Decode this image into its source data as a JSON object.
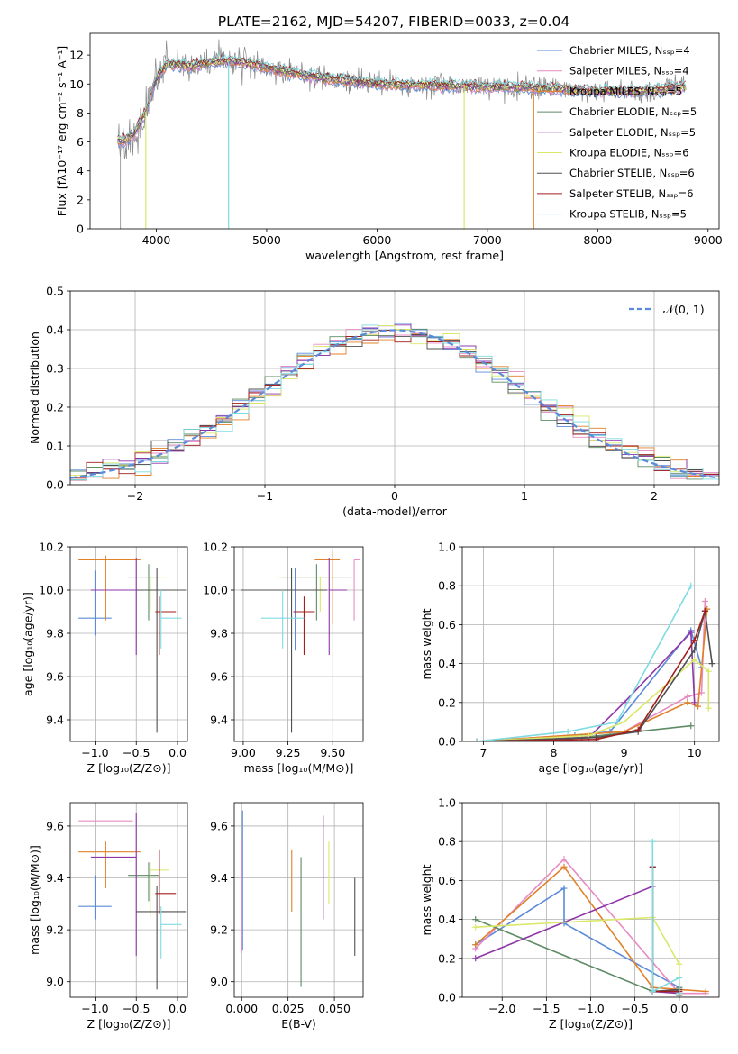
{
  "colors": [
    "#5b8bd9",
    "#e88bc4",
    "#e0812a",
    "#5e8a64",
    "#8e35a8",
    "#d9e86a",
    "#505050",
    "#a01f1f",
    "#7edbe0"
  ],
  "chart_data": [
    {
      "id": "spectrum",
      "type": "line",
      "title": "PLATE=2162, MJD=54207, FIBERID=0033, z=0.04",
      "xlabel": "wavelength [Angstrom, rest frame]",
      "ylabel": "Flux [fλ10⁻¹⁷ erg cm⁻² s⁻¹ A⁻¹]",
      "xlim": [
        3400,
        9100
      ],
      "ylim": [
        0,
        13.5
      ],
      "xticks": [
        4000,
        5000,
        6000,
        7000,
        8000,
        9000
      ],
      "yticks": [
        0,
        2,
        4,
        6,
        8,
        10,
        12
      ],
      "grid": false,
      "legend_position": "top-right",
      "legend": [
        "Chabrier MILES, Nₛₛₚ=4",
        "Salpeter MILES, Nₛₛₚ=4",
        "Kroupa MILES, Nₛₛₚ=5",
        "Chabrier ELODIE, Nₛₛₚ=5",
        "Salpeter ELODIE, Nₛₛₚ=5",
        "Kroupa ELODIE, Nₛₛₚ=6",
        "Chabrier STELIB, Nₛₛₚ=6",
        "Salpeter STELIB, Nₛₛₚ=6",
        "Kroupa STELIB, Nₛₛₚ=5"
      ],
      "continuum": {
        "x": [
          3650,
          3700,
          3800,
          3900,
          4000,
          4100,
          4300,
          4500,
          4700,
          4900,
          5200,
          5500,
          6000,
          6500,
          7000,
          7500,
          8000,
          8400,
          8800
        ],
        "y": [
          6.2,
          6.0,
          6.6,
          8.0,
          10.4,
          11.4,
          11.2,
          11.5,
          11.6,
          11.3,
          10.8,
          10.4,
          10.0,
          9.9,
          9.8,
          9.7,
          9.5,
          9.5,
          9.8
        ]
      },
      "dropouts": [
        {
          "series": "Kroupa ELODIE",
          "x": 3905
        },
        {
          "series": "Kroupa STELIB",
          "x": 4655
        },
        {
          "series": "Kroupa ELODIE",
          "x": 6790
        },
        {
          "series": "Kroupa MILES",
          "x": 7420
        }
      ]
    },
    {
      "id": "residuals",
      "type": "histogram",
      "xlabel": "(data-model)/error",
      "ylabel": "Normed distribution",
      "xlim": [
        -2.5,
        2.5
      ],
      "ylim": [
        0,
        0.5
      ],
      "xticks": [
        -2,
        -1,
        0,
        1,
        2
      ],
      "yticks": [
        0.0,
        0.1,
        0.2,
        0.3,
        0.4,
        0.5
      ],
      "grid": true,
      "legend_position": "top-right",
      "legend": [
        "𝒩(0, 1)"
      ],
      "reference_curve": {
        "name": "𝒩(0, 1)",
        "mean": 0,
        "sigma": 1,
        "style": "dashed"
      }
    },
    {
      "id": "age-vs-Z",
      "type": "errorbar",
      "xlabel": "Z [log₁₀(Z/Z⊙)]",
      "ylabel": "age  [log₁₀(age/yr)]",
      "xlim": [
        -1.3,
        0.12
      ],
      "ylim": [
        9.3,
        10.2
      ],
      "xticks": [
        -1.0,
        -0.5,
        0.0
      ],
      "yticks": [
        9.4,
        9.6,
        9.8,
        10.0,
        10.2
      ],
      "grid": true,
      "points": [
        {
          "x": -1.0,
          "xerr": [
            0.2,
            0.2
          ],
          "y": 9.87,
          "yerr": [
            0.08,
            0.22
          ]
        },
        {
          "x": -0.87,
          "xerr": [
            0.33,
            0.33
          ],
          "y": 10.14,
          "yerr": [
            0.0,
            0.0
          ]
        },
        {
          "x": -0.87,
          "xerr": [
            0.33,
            0.42
          ],
          "y": 10.14,
          "yerr": [
            0.28,
            0.02
          ]
        },
        {
          "x": -0.35,
          "xerr": [
            0.25,
            0.12
          ],
          "y": 10.06,
          "yerr": [
            0.2,
            0.06
          ]
        },
        {
          "x": -0.5,
          "xerr": [
            0.55,
            0.0
          ],
          "y": 10.0,
          "yerr": [
            0.3,
            0.15
          ]
        },
        {
          "x": -0.33,
          "xerr": [
            0.0,
            0.22
          ],
          "y": 10.06,
          "yerr": [
            0.16,
            0.0
          ]
        },
        {
          "x": -0.25,
          "xerr": [
            0.25,
            0.35
          ],
          "y": 10.0,
          "yerr": [
            0.66,
            0.1
          ]
        },
        {
          "x": -0.22,
          "xerr": [
            0.05,
            0.2
          ],
          "y": 9.9,
          "yerr": [
            0.2,
            0.07
          ]
        },
        {
          "x": -0.2,
          "xerr": [
            0.0,
            0.25
          ],
          "y": 9.87,
          "yerr": [
            0.14,
            0.13
          ]
        }
      ]
    },
    {
      "id": "age-vs-mass",
      "type": "errorbar",
      "xlabel": "mass [log₁₀(M/M⊙)]",
      "ylabel": "",
      "xlim": [
        8.95,
        9.67
      ],
      "ylim": [
        9.3,
        10.2
      ],
      "xticks": [
        9.0,
        9.25,
        9.5
      ],
      "yticks": [
        9.4,
        9.6,
        9.8,
        10.0,
        10.2
      ],
      "grid": true,
      "points": [
        {
          "x": 9.29,
          "xerr": [
            0.0,
            0.0
          ],
          "y": 10.0,
          "yerr": [
            0.28,
            0.1
          ]
        },
        {
          "x": 9.62,
          "xerr": [
            0.0,
            0.03
          ],
          "y": 10.14,
          "yerr": [
            0.28,
            0.0
          ]
        },
        {
          "x": 9.5,
          "xerr": [
            0.1,
            0.04
          ],
          "y": 10.14,
          "yerr": [
            0.3,
            0.04
          ]
        },
        {
          "x": 9.41,
          "xerr": [
            0.2,
            0.2
          ],
          "y": 10.06,
          "yerr": [
            0.2,
            0.06
          ]
        },
        {
          "x": 9.48,
          "xerr": [
            0.0,
            0.1
          ],
          "y": 10.0,
          "yerr": [
            0.3,
            0.15
          ]
        },
        {
          "x": 9.43,
          "xerr": [
            0.25,
            0.1
          ],
          "y": 10.06,
          "yerr": [
            0.16,
            0.0
          ]
        },
        {
          "x": 9.27,
          "xerr": [
            0.28,
            0.2
          ],
          "y": 10.0,
          "yerr": [
            0.66,
            0.1
          ]
        },
        {
          "x": 9.34,
          "xerr": [
            0.06,
            0.06
          ],
          "y": 9.9,
          "yerr": [
            0.2,
            0.07
          ]
        },
        {
          "x": 9.22,
          "xerr": [
            0.12,
            0.12
          ],
          "y": 9.87,
          "yerr": [
            0.14,
            0.13
          ]
        }
      ]
    },
    {
      "id": "mass-weight-vs-age",
      "type": "line",
      "xlabel": "age  [log₁₀(age/yr)]",
      "ylabel": "mass weight",
      "xlim": [
        6.7,
        10.35
      ],
      "ylim": [
        0,
        1.0
      ],
      "xticks": [
        7,
        8,
        9,
        10
      ],
      "yticks": [
        0.0,
        0.2,
        0.4,
        0.6,
        0.8,
        1.0
      ],
      "grid": true,
      "series": [
        {
          "name": "Chabrier MILES",
          "x": [
            6.9,
            8.3,
            8.8,
            9.95,
            10.1
          ],
          "y": [
            0.0,
            0.03,
            0.05,
            0.57,
            0.38
          ]
        },
        {
          "name": "Salpeter MILES",
          "x": [
            6.9,
            9.0,
            9.9,
            10.1,
            10.15
          ],
          "y": [
            0.0,
            0.05,
            0.23,
            0.25,
            0.72
          ]
        },
        {
          "name": "Kroupa MILES",
          "x": [
            6.9,
            9.0,
            9.9,
            10.05,
            10.18
          ],
          "y": [
            0.0,
            0.05,
            0.2,
            0.18,
            0.68
          ]
        },
        {
          "name": "Chabrier ELODIE",
          "x": [
            6.9,
            8.4,
            9.95
          ],
          "y": [
            0.0,
            0.02,
            0.08
          ]
        },
        {
          "name": "Salpeter ELODIE",
          "x": [
            6.9,
            8.5,
            9.0,
            9.95,
            10.0
          ],
          "y": [
            0.0,
            0.02,
            0.2,
            0.56,
            0.2
          ]
        },
        {
          "name": "Kroupa ELODIE",
          "x": [
            6.9,
            8.5,
            9.0,
            10.0,
            10.2,
            10.2
          ],
          "y": [
            0.0,
            0.03,
            0.1,
            0.42,
            0.36,
            0.17
          ]
        },
        {
          "name": "Chabrier STELIB",
          "x": [
            6.9,
            8.6,
            9.2,
            10.0,
            10.15,
            10.25
          ],
          "y": [
            0.0,
            0.02,
            0.05,
            0.47,
            0.67,
            0.4
          ]
        },
        {
          "name": "Salpeter STELIB",
          "x": [
            6.9,
            8.6,
            9.2,
            10.0,
            10.15
          ],
          "y": [
            0.0,
            0.01,
            0.06,
            0.52,
            0.67
          ]
        },
        {
          "name": "Kroupa STELIB",
          "x": [
            6.9,
            8.2,
            8.9,
            9.95
          ],
          "y": [
            0.0,
            0.05,
            0.1,
            0.8
          ]
        }
      ]
    },
    {
      "id": "mass-vs-Z",
      "type": "errorbar",
      "xlabel": "Z [log₁₀(Z/Z⊙)]",
      "ylabel": "mass [log₁₀(M/M⊙)]",
      "xlim": [
        -1.3,
        0.12
      ],
      "ylim": [
        8.94,
        9.69
      ],
      "xticks": [
        -1.0,
        -0.5,
        0.0
      ],
      "yticks": [
        9.0,
        9.2,
        9.4,
        9.6
      ],
      "grid": true,
      "points": [
        {
          "x": -1.0,
          "xerr": [
            0.2,
            0.2
          ],
          "y": 9.29,
          "yerr": [
            0.05,
            0.12
          ]
        },
        {
          "x": -0.87,
          "xerr": [
            0.33,
            0.33
          ],
          "y": 9.62,
          "yerr": [
            0.0,
            0.0
          ]
        },
        {
          "x": -0.87,
          "xerr": [
            0.33,
            0.42
          ],
          "y": 9.5,
          "yerr": [
            0.14,
            0.04
          ]
        },
        {
          "x": -0.35,
          "xerr": [
            0.25,
            0.12
          ],
          "y": 9.41,
          "yerr": [
            0.1,
            0.05
          ]
        },
        {
          "x": -0.5,
          "xerr": [
            0.55,
            0.0
          ],
          "y": 9.48,
          "yerr": [
            0.38,
            0.17
          ]
        },
        {
          "x": -0.33,
          "xerr": [
            0.0,
            0.22
          ],
          "y": 9.43,
          "yerr": [
            0.18,
            0.03
          ]
        },
        {
          "x": -0.25,
          "xerr": [
            0.25,
            0.35
          ],
          "y": 9.27,
          "yerr": [
            0.3,
            0.1
          ]
        },
        {
          "x": -0.22,
          "xerr": [
            0.05,
            0.2
          ],
          "y": 9.34,
          "yerr": [
            0.08,
            0.17
          ]
        },
        {
          "x": -0.2,
          "xerr": [
            0.0,
            0.25
          ],
          "y": 9.22,
          "yerr": [
            0.13,
            0.07
          ]
        }
      ]
    },
    {
      "id": "mass-vs-ebv",
      "type": "errorbar",
      "xlabel": "E(B-V)",
      "ylabel": "",
      "xlim": [
        -0.004,
        0.0655
      ],
      "ylim": [
        8.94,
        9.69
      ],
      "xticks": [
        0.0,
        0.025,
        0.05
      ],
      "yticks": [
        9.0,
        9.2,
        9.4,
        9.6
      ],
      "grid": true,
      "points": [
        {
          "x": 0.0005,
          "y": 9.12,
          "yerr": [
            0.0,
            0.54
          ]
        },
        {
          "x": 0.0,
          "y": 9.35,
          "yerr": [
            0.24,
            0.2
          ]
        },
        {
          "x": 0.027,
          "y": 9.39,
          "yerr": [
            0.12,
            0.12
          ]
        },
        {
          "x": 0.032,
          "y": 9.25,
          "yerr": [
            0.27,
            0.23
          ]
        },
        {
          "x": 0.044,
          "y": 9.44,
          "yerr": [
            0.2,
            0.2
          ]
        },
        {
          "x": 0.047,
          "y": 9.42,
          "yerr": [
            0.12,
            0.12
          ]
        },
        {
          "x": 0.061,
          "y": 9.22,
          "yerr": [
            0.12,
            0.18
          ]
        }
      ]
    },
    {
      "id": "mass-weight-vs-Z",
      "type": "line",
      "xlabel": "Z [log₁₀(Z/Z⊙)]",
      "ylabel": "mass weight",
      "xlim": [
        -2.45,
        0.45
      ],
      "ylim": [
        0,
        1.0
      ],
      "xticks": [
        -2.0,
        -1.5,
        -1.0,
        -0.5,
        0.0
      ],
      "yticks": [
        0.0,
        0.2,
        0.4,
        0.6,
        0.8,
        1.0
      ],
      "grid": true,
      "series": [
        {
          "name": "Chabrier MILES",
          "x": [
            -2.3,
            -1.3,
            -1.3,
            0.0,
            0.0
          ],
          "y": [
            0.27,
            0.56,
            0.38,
            0.05,
            0.02
          ]
        },
        {
          "name": "Salpeter MILES",
          "x": [
            -2.3,
            -1.3,
            0.0,
            0.3
          ],
          "y": [
            0.25,
            0.71,
            0.02,
            0.02
          ]
        },
        {
          "name": "Kroupa MILES",
          "x": [
            -2.3,
            -1.3,
            -0.3,
            0.3
          ],
          "y": [
            0.27,
            0.67,
            0.05,
            0.03
          ]
        },
        {
          "name": "Chabrier ELODIE",
          "x": [
            -2.3,
            -0.3,
            0.0,
            0.0
          ],
          "y": [
            0.4,
            0.03,
            0.03,
            0.05
          ]
        },
        {
          "name": "Salpeter ELODIE",
          "x": [
            -2.3,
            -0.3,
            -0.3,
            0.0
          ],
          "y": [
            0.2,
            0.57,
            0.03,
            0.02
          ]
        },
        {
          "name": "Kroupa ELODIE",
          "x": [
            -2.3,
            -0.3,
            0.0,
            0.0
          ],
          "y": [
            0.36,
            0.41,
            0.17,
            0.02
          ]
        },
        {
          "name": "Chabrier STELIB",
          "x": [
            -0.3,
            -0.3,
            0.0,
            0.0
          ],
          "y": [
            0.67,
            0.03,
            0.04,
            0.01
          ]
        },
        {
          "name": "Salpeter STELIB",
          "x": [
            -0.3,
            -0.3,
            0.0
          ],
          "y": [
            0.67,
            0.03,
            0.03
          ]
        },
        {
          "name": "Kroupa STELIB",
          "x": [
            -0.3,
            -0.3,
            0.0,
            0.0
          ],
          "y": [
            0.8,
            0.03,
            0.1,
            0.02
          ]
        }
      ]
    }
  ]
}
